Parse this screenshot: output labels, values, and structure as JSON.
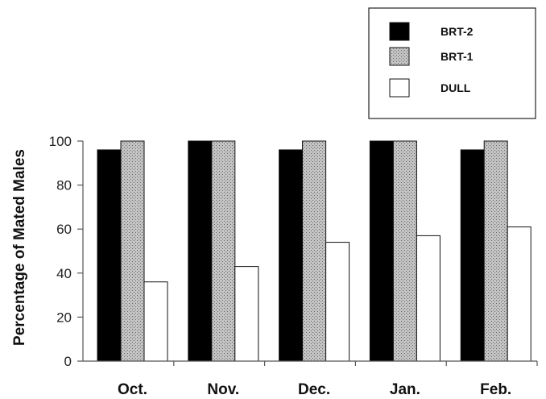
{
  "chart_data": {
    "type": "bar",
    "title": "",
    "xlabel": "",
    "ylabel": "Percentage of Mated Males",
    "categories": [
      "Oct.",
      "Nov.",
      "Dec.",
      "Jan.",
      "Feb."
    ],
    "series": [
      {
        "name": "BRT-2",
        "values": [
          96,
          100,
          96,
          100,
          96
        ],
        "fill": "#000000",
        "pattern": "solid"
      },
      {
        "name": "BRT-1",
        "values": [
          100,
          100,
          100,
          100,
          100
        ],
        "fill": "#b4b4b4",
        "pattern": "dotted"
      },
      {
        "name": "DULL",
        "values": [
          36,
          43,
          54,
          57,
          61
        ],
        "fill": "#ffffff",
        "pattern": "solid"
      }
    ],
    "ylim": [
      0,
      100
    ],
    "yticks": [
      "0",
      "20",
      "40",
      "60",
      "80",
      "100"
    ],
    "grid": false,
    "legend_position": "top-right"
  }
}
